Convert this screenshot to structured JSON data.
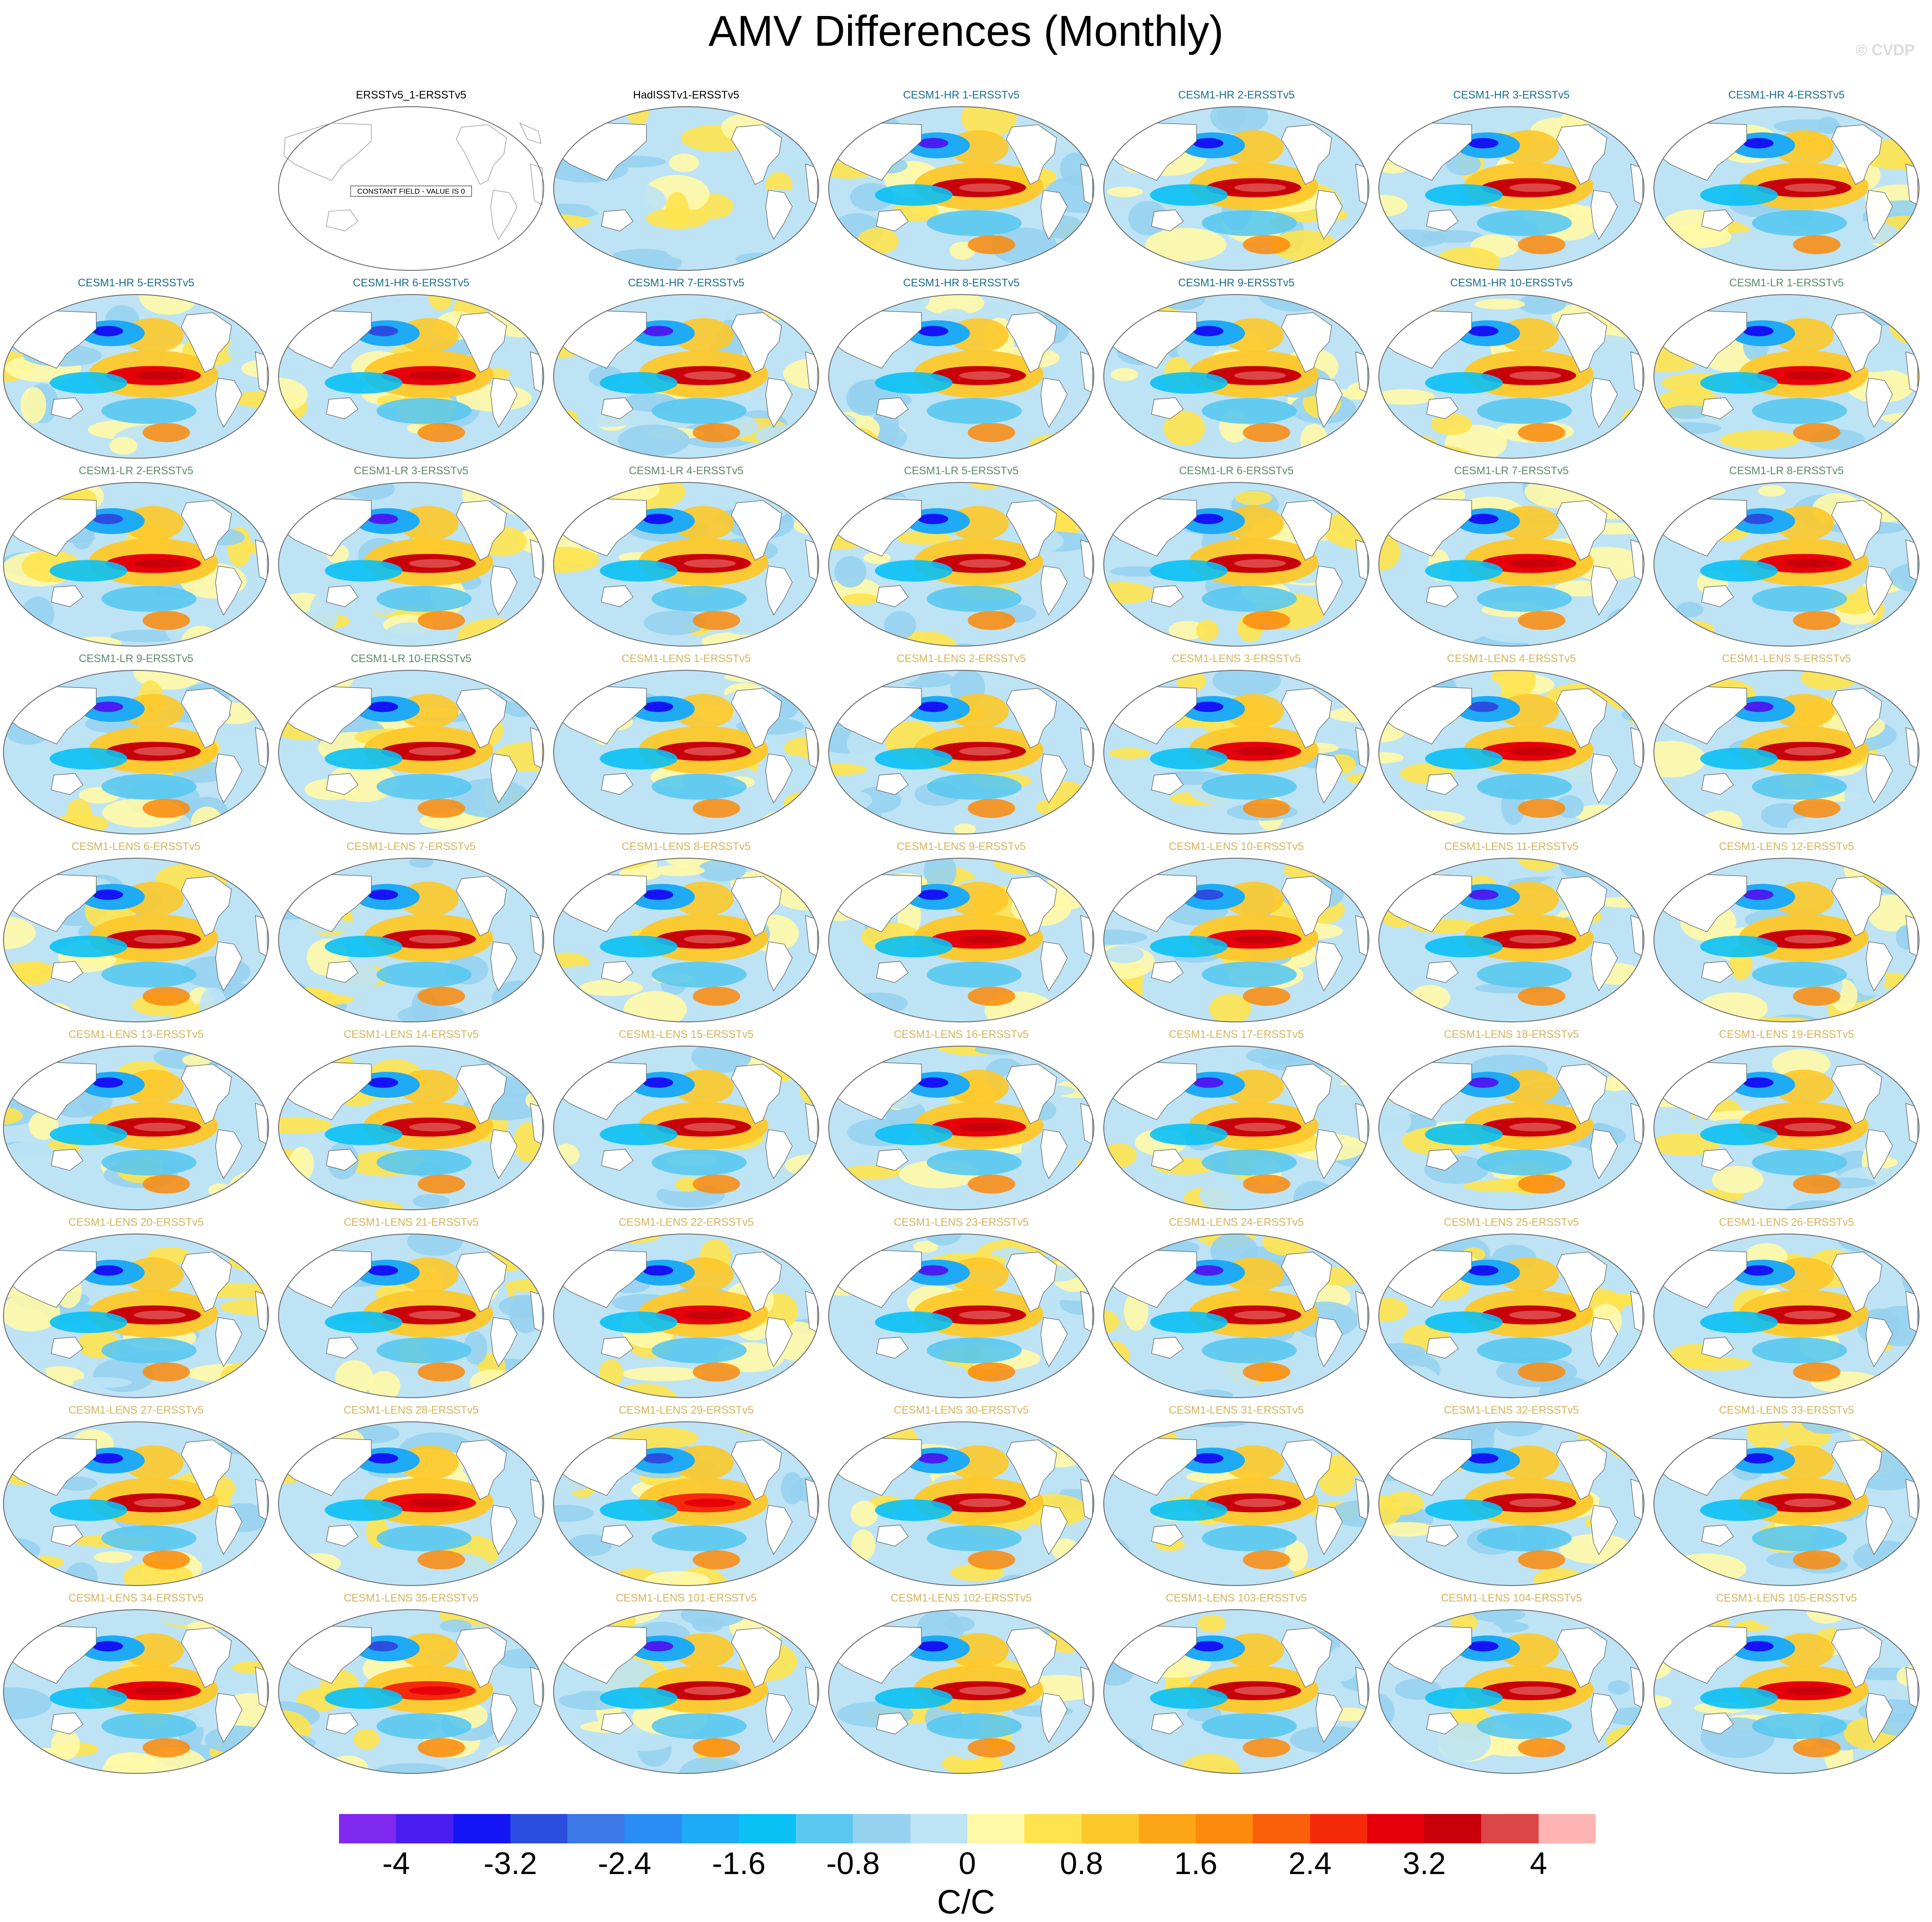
{
  "title": "AMV Differences (Monthly)",
  "watermark": "© CVDP",
  "colors": {
    "first_row_label": "#000000",
    "hr_label": "#1a6e8c",
    "lr_label": "#5a8a6a",
    "lens_label": "#d4b45a",
    "land": "#ffffff",
    "ocean_neutral_pos": "#fff8a8",
    "ocean_neutral_neg": "#bde3f5"
  },
  "chart_data": {
    "type": "heatmap",
    "projection": "global map panels",
    "constant_field_note": "CONSTANT FIELD - VALUE IS 0",
    "panels": [
      "ERSSTv5_1-ERSSTv5",
      "HadISSTv1-ERSSTv5",
      "CESM1-HR 1-ERSSTv5",
      "CESM1-HR 2-ERSSTv5",
      "CESM1-HR 3-ERSSTv5",
      "CESM1-HR 4-ERSSTv5",
      "CESM1-HR 5-ERSSTv5",
      "CESM1-HR 6-ERSSTv5",
      "CESM1-HR 7-ERSSTv5",
      "CESM1-HR 8-ERSSTv5",
      "CESM1-HR 9-ERSSTv5",
      "CESM1-HR 10-ERSSTv5",
      "CESM1-LR 1-ERSSTv5",
      "CESM1-LR 2-ERSSTv5",
      "CESM1-LR 3-ERSSTv5",
      "CESM1-LR 4-ERSSTv5",
      "CESM1-LR 5-ERSSTv5",
      "CESM1-LR 6-ERSSTv5",
      "CESM1-LR 7-ERSSTv5",
      "CESM1-LR 8-ERSSTv5",
      "CESM1-LR 9-ERSSTv5",
      "CESM1-LR 10-ERSSTv5",
      "CESM1-LENS 1-ERSSTv5",
      "CESM1-LENS 2-ERSSTv5",
      "CESM1-LENS 3-ERSSTv5",
      "CESM1-LENS 4-ERSSTv5",
      "CESM1-LENS 5-ERSSTv5",
      "CESM1-LENS 6-ERSSTv5",
      "CESM1-LENS 7-ERSSTv5",
      "CESM1-LENS 8-ERSSTv5",
      "CESM1-LENS 9-ERSSTv5",
      "CESM1-LENS 10-ERSSTv5",
      "CESM1-LENS 11-ERSSTv5",
      "CESM1-LENS 12-ERSSTv5",
      "CESM1-LENS 13-ERSSTv5",
      "CESM1-LENS 14-ERSSTv5",
      "CESM1-LENS 15-ERSSTv5",
      "CESM1-LENS 16-ERSSTv5",
      "CESM1-LENS 17-ERSSTv5",
      "CESM1-LENS 18-ERSSTv5",
      "CESM1-LENS 19-ERSSTv5",
      "CESM1-LENS 20-ERSSTv5",
      "CESM1-LENS 21-ERSSTv5",
      "CESM1-LENS 22-ERSSTv5",
      "CESM1-LENS 23-ERSSTv5",
      "CESM1-LENS 24-ERSSTv5",
      "CESM1-LENS 25-ERSSTv5",
      "CESM1-LENS 26-ERSSTv5",
      "CESM1-LENS 27-ERSSTv5",
      "CESM1-LENS 28-ERSSTv5",
      "CESM1-LENS 29-ERSSTv5",
      "CESM1-LENS 30-ERSSTv5",
      "CESM1-LENS 31-ERSSTv5",
      "CESM1-LENS 32-ERSSTv5",
      "CESM1-LENS 33-ERSSTv5",
      "CESM1-LENS 34-ERSSTv5",
      "CESM1-LENS 35-ERSSTv5",
      "CESM1-LENS 101-ERSSTv5",
      "CESM1-LENS 102-ERSSTv5",
      "CESM1-LENS 103-ERSSTv5",
      "CESM1-LENS 104-ERSSTv5",
      "CESM1-LENS 105-ERSSTv5"
    ],
    "colorbar": {
      "label": "C/C",
      "range": [
        -4.4,
        4.4
      ],
      "levels": [
        -4.0,
        -3.6,
        -3.2,
        -2.8,
        -2.4,
        -2.0,
        -1.6,
        -1.2,
        -0.8,
        -0.4,
        0,
        0.4,
        0.8,
        1.2,
        1.6,
        2.0,
        2.4,
        2.8,
        3.2,
        3.6,
        4.0
      ],
      "colors": [
        "#7f28f0",
        "#4a1ef0",
        "#1414f5",
        "#2c4ee0",
        "#3c78e6",
        "#2a8cf5",
        "#1eaaf5",
        "#0ac0f5",
        "#5ac8f0",
        "#96d2f0",
        "#bde3f5",
        "#fff8a8",
        "#fee34f",
        "#fdc82a",
        "#fca617",
        "#fc8a0a",
        "#fa5f0a",
        "#f52a0a",
        "#e6000a",
        "#c8000a",
        "#dc4646",
        "#ffb4b4"
      ],
      "tick_labels": [
        "-4",
        "-3.2",
        "-2.4",
        "-1.6",
        "-0.8",
        "0",
        "0.8",
        "1.6",
        "2.4",
        "3.2",
        "4"
      ],
      "tick_values": [
        -4,
        -3.2,
        -2.4,
        -1.6,
        -0.8,
        0,
        0.8,
        1.6,
        2.4,
        3.2,
        4
      ]
    }
  }
}
